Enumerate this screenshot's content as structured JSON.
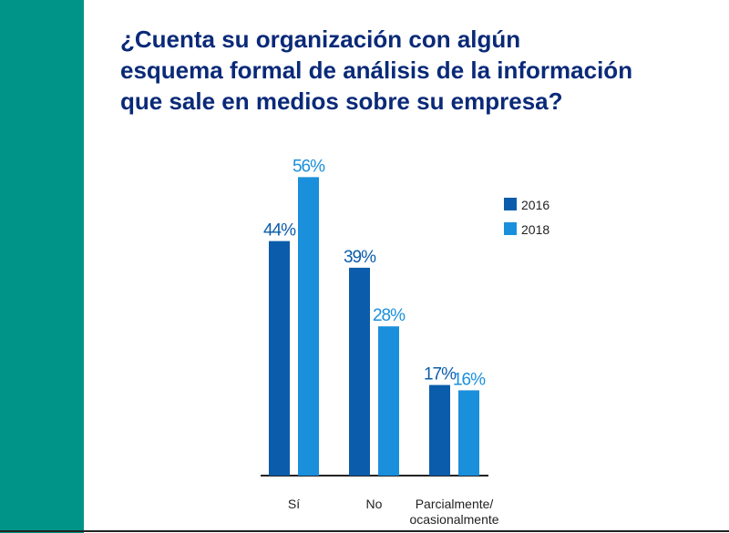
{
  "title_lines": [
    "¿Cuenta su organización con algún",
    "esquema formal de análisis de la información",
    "que sale en medios sobre su empresa?"
  ],
  "colors": {
    "side_bar": "#009488",
    "title": "#0a2a78",
    "series_2016": "#0b5cab",
    "series_2018": "#1a8fdc"
  },
  "chart_data": {
    "type": "bar",
    "title": "¿Cuenta su organización con algún esquema formal de análisis de la información que sale en medios sobre su empresa?",
    "categories": [
      "Sí",
      "No",
      "Parcialmente/ ocasionalmente"
    ],
    "category_lines": [
      [
        "Sí"
      ],
      [
        "No"
      ],
      [
        "Parcialmente/",
        "ocasionalmente"
      ]
    ],
    "series": [
      {
        "name": "2016",
        "values": [
          44,
          39,
          17
        ],
        "labels": [
          "44%",
          "39%",
          "17%"
        ]
      },
      {
        "name": "2018",
        "values": [
          56,
          28,
          16
        ],
        "labels": [
          "56%",
          "28%",
          "16%"
        ]
      }
    ],
    "unit": "%",
    "ylim": [
      0,
      60
    ],
    "grid": false,
    "legend_position": "top-right",
    "legend": [
      "2016",
      "2018"
    ]
  }
}
